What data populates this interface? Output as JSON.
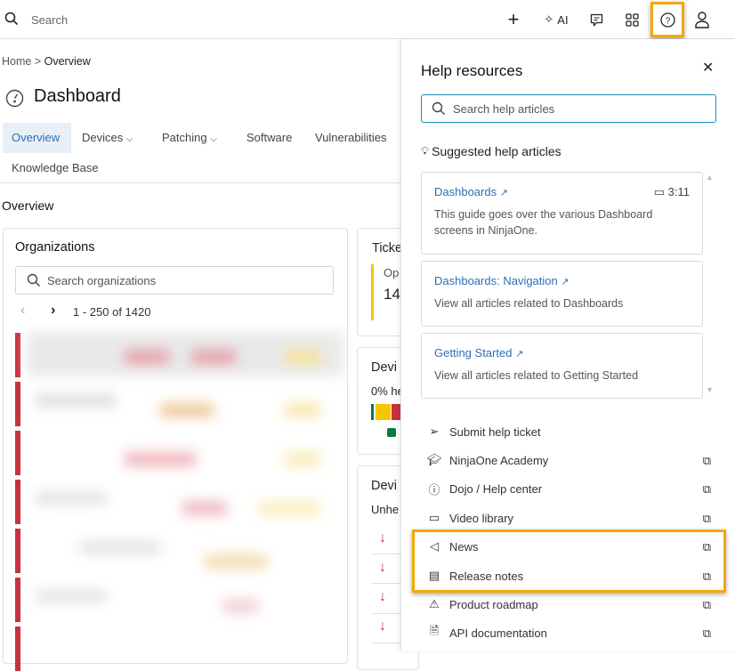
{
  "topbar": {
    "search_placeholder": "Search",
    "ai_label": "AI"
  },
  "breadcrumb": {
    "home": "Home",
    "separator": ">",
    "current": "Overview"
  },
  "page": {
    "title": "Dashboard"
  },
  "tabs": [
    {
      "label": "Overview",
      "active": true
    },
    {
      "label": "Devices"
    },
    {
      "label": "Patching"
    },
    {
      "label": "Software"
    },
    {
      "label": "Vulnerabilities"
    },
    {
      "label": "Knowledge Base"
    }
  ],
  "section_title": "Overview",
  "organizations": {
    "title": "Organizations",
    "search_placeholder": "Search organizations",
    "pager": "1 - 250 of 1420"
  },
  "side_cards": {
    "ticket_title": "Ticke",
    "ticket_label": "Op",
    "ticket_value": "14",
    "devices_title": "Devi",
    "devices_health": "0% he",
    "devices2_title": "Devi",
    "devices2_label": "Unhe"
  },
  "help": {
    "title": "Help resources",
    "search_placeholder": "Search help articles",
    "suggested_title": "Suggested help articles",
    "articles": [
      {
        "title": "Dashboards",
        "duration": "3:11",
        "description": "This guide goes over the various Dashboard screens in NinjaOne."
      },
      {
        "title": "Dashboards: Navigation",
        "description": "View all articles related to Dashboards"
      },
      {
        "title": "Getting Started",
        "description": "View all articles related to Getting Started"
      }
    ],
    "links": [
      {
        "label": "Submit help ticket",
        "icon": "paper-plane-icon"
      },
      {
        "label": "NinjaOne Academy",
        "icon": "graduation-cap-icon"
      },
      {
        "label": "Dojo / Help center",
        "icon": "question-circle-icon"
      },
      {
        "label": "Video library",
        "icon": "video-icon"
      },
      {
        "label": "News",
        "icon": "megaphone-icon"
      },
      {
        "label": "Release notes",
        "icon": "document-icon"
      },
      {
        "label": "Product roadmap",
        "icon": "roadmap-icon"
      },
      {
        "label": "API documentation",
        "icon": "code-file-icon"
      }
    ]
  },
  "colors": {
    "accent": "#2f6fb5",
    "highlight": "#f5a800",
    "critical": "#c8313d",
    "warning": "#f7c600",
    "healthy": "#0a7a45"
  }
}
